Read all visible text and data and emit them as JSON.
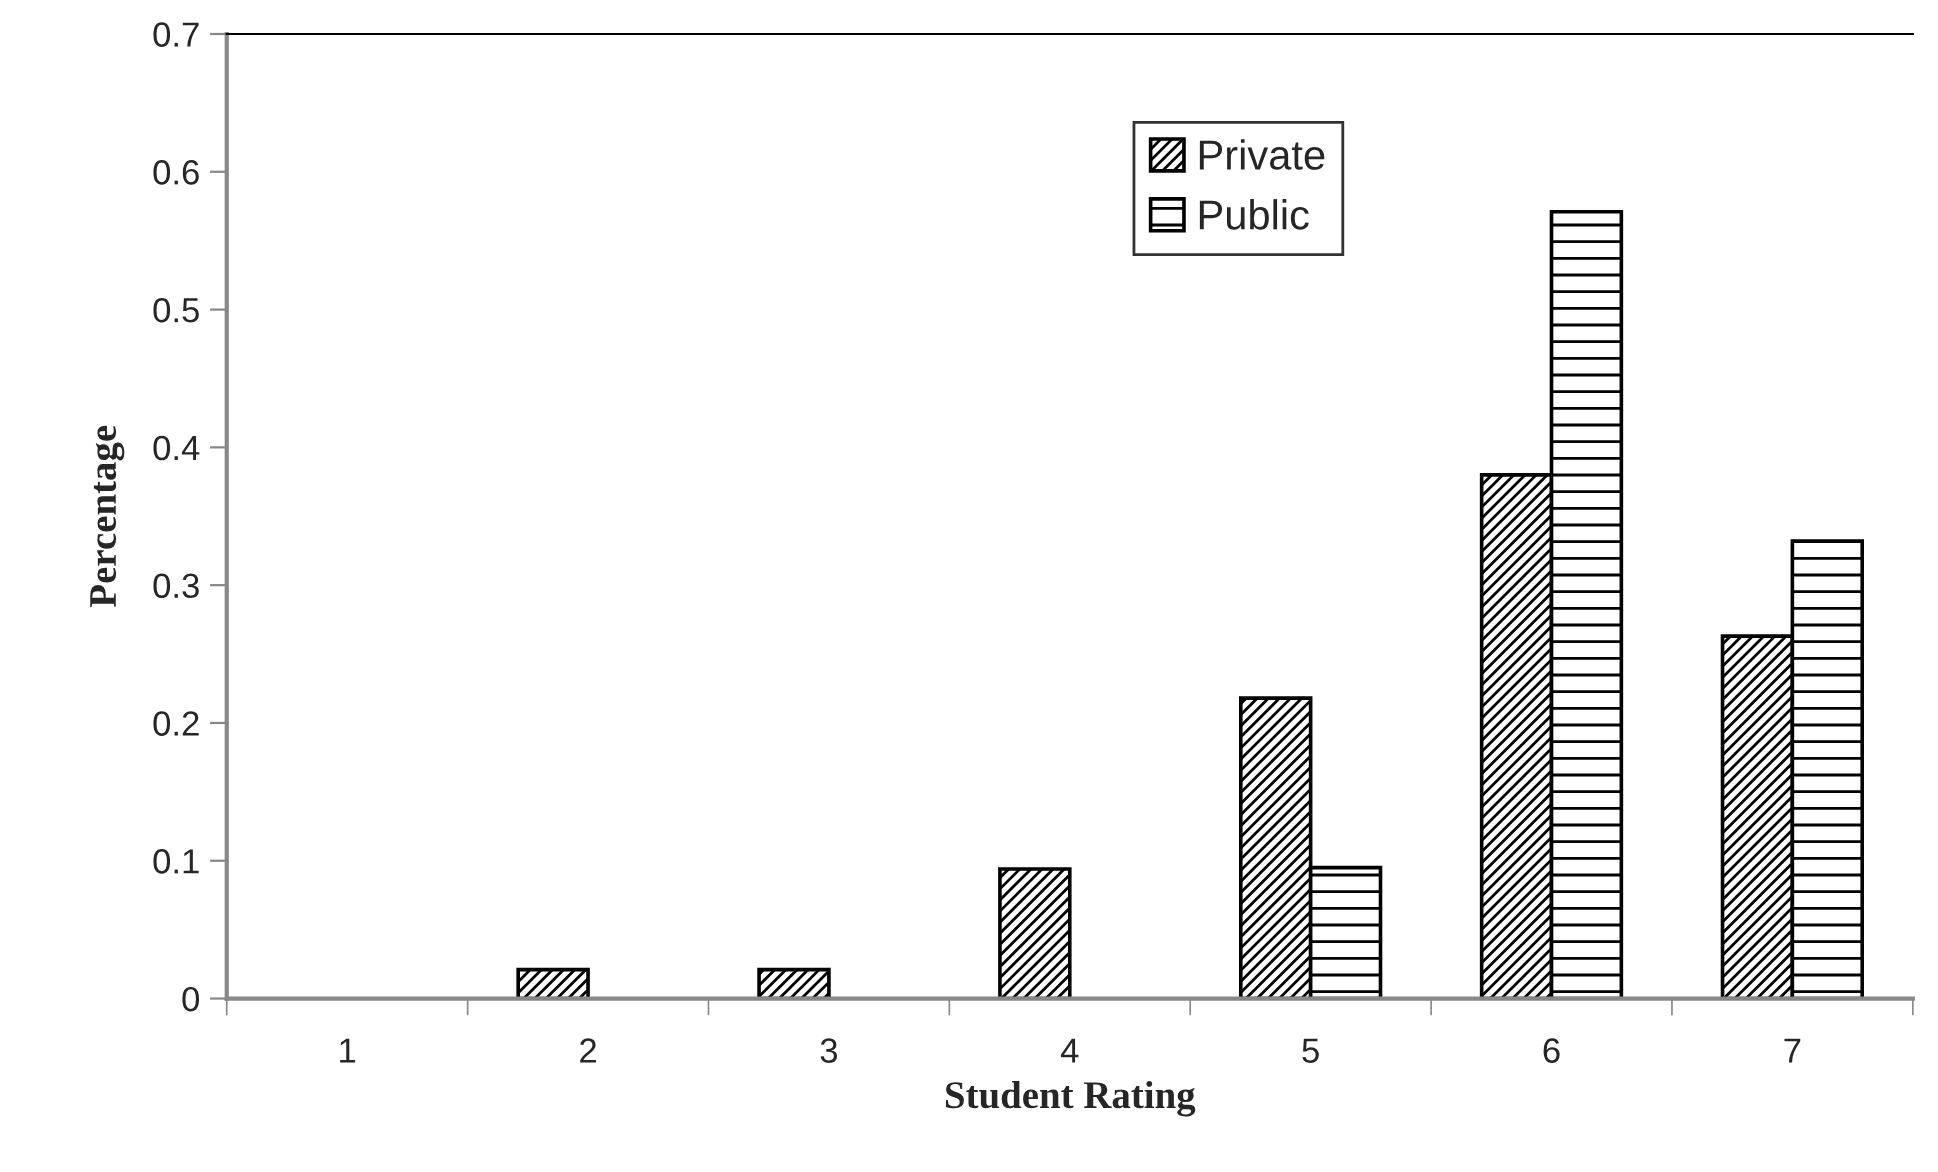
{
  "chart_data": {
    "type": "bar",
    "xlabel": "Student Rating",
    "ylabel": "Percentage",
    "categories": [
      "1",
      "2",
      "3",
      "4",
      "5",
      "6",
      "7"
    ],
    "series": [
      {
        "name": "Private",
        "color": "#000000",
        "values": [
          0,
          0.021,
          0.021,
          0.094,
          0.218,
          0.38,
          0.263
        ]
      },
      {
        "name": "Public",
        "color": "#000000",
        "values": [
          0,
          0,
          0,
          0,
          0.095,
          0.571,
          0.332
        ]
      }
    ],
    "ylim": [
      0,
      0.7
    ],
    "yticks": [
      0,
      0.1,
      0.2,
      0.3,
      0.4,
      0.5,
      0.6,
      0.7
    ],
    "grid": false,
    "legend": "top"
  }
}
